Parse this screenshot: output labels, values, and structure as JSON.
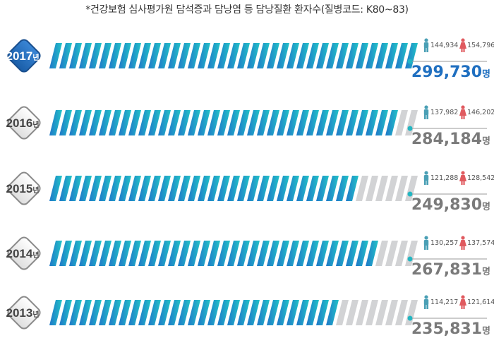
{
  "caption": "*건강보험 심사평가원 담석증과 담낭염 등 담낭질환 환자수(질병코드: K80~83)",
  "colors": {
    "highlight": "#1f6fc0",
    "total_gray": "#7a7a7a",
    "male_icon": "#4a9fb5",
    "female_icon": "#e05a5f",
    "stripe_start": "#1f78c8",
    "stripe_end": "#22c2c7",
    "stripe_empty": "#d2d3d5",
    "badge_active": "#2168b8",
    "badge_inactive": "#eeeeee"
  },
  "chart_data": {
    "type": "bar",
    "orientation": "horizontal",
    "categories": [
      "2017년",
      "2016년",
      "2015년",
      "2014년",
      "2013년"
    ],
    "unit": "명",
    "xlim": [
      0,
      299730
    ],
    "series": [
      {
        "values": [
          299730,
          284184,
          249830,
          267831,
          235831
        ]
      },
      {
        "values": [
          144934,
          137982,
          121288,
          130257,
          114217
        ]
      },
      {
        "values": [
          154796,
          146202,
          128542,
          137574,
          121614
        ]
      }
    ],
    "rows": [
      {
        "year": "2017",
        "suffix": "년",
        "total": "299,730",
        "unit": "명",
        "male": "144,934",
        "female": "154,796",
        "value": 299730,
        "active": true
      },
      {
        "year": "2016",
        "suffix": "년",
        "total": "284,184",
        "unit": "명",
        "male": "137,982",
        "female": "146,202",
        "value": 284184,
        "active": false
      },
      {
        "year": "2015",
        "suffix": "년",
        "total": "249,830",
        "unit": "명",
        "male": "121,288",
        "female": "128,542",
        "value": 249830,
        "active": false
      },
      {
        "year": "2014",
        "suffix": "년",
        "total": "267,831",
        "unit": "명",
        "male": "130,257",
        "female": "137,574",
        "value": 267831,
        "active": false
      },
      {
        "year": "2013",
        "suffix": "년",
        "total": "235,831",
        "unit": "명",
        "male": "114,217",
        "female": "121,614",
        "value": 235831,
        "active": false
      }
    ]
  }
}
